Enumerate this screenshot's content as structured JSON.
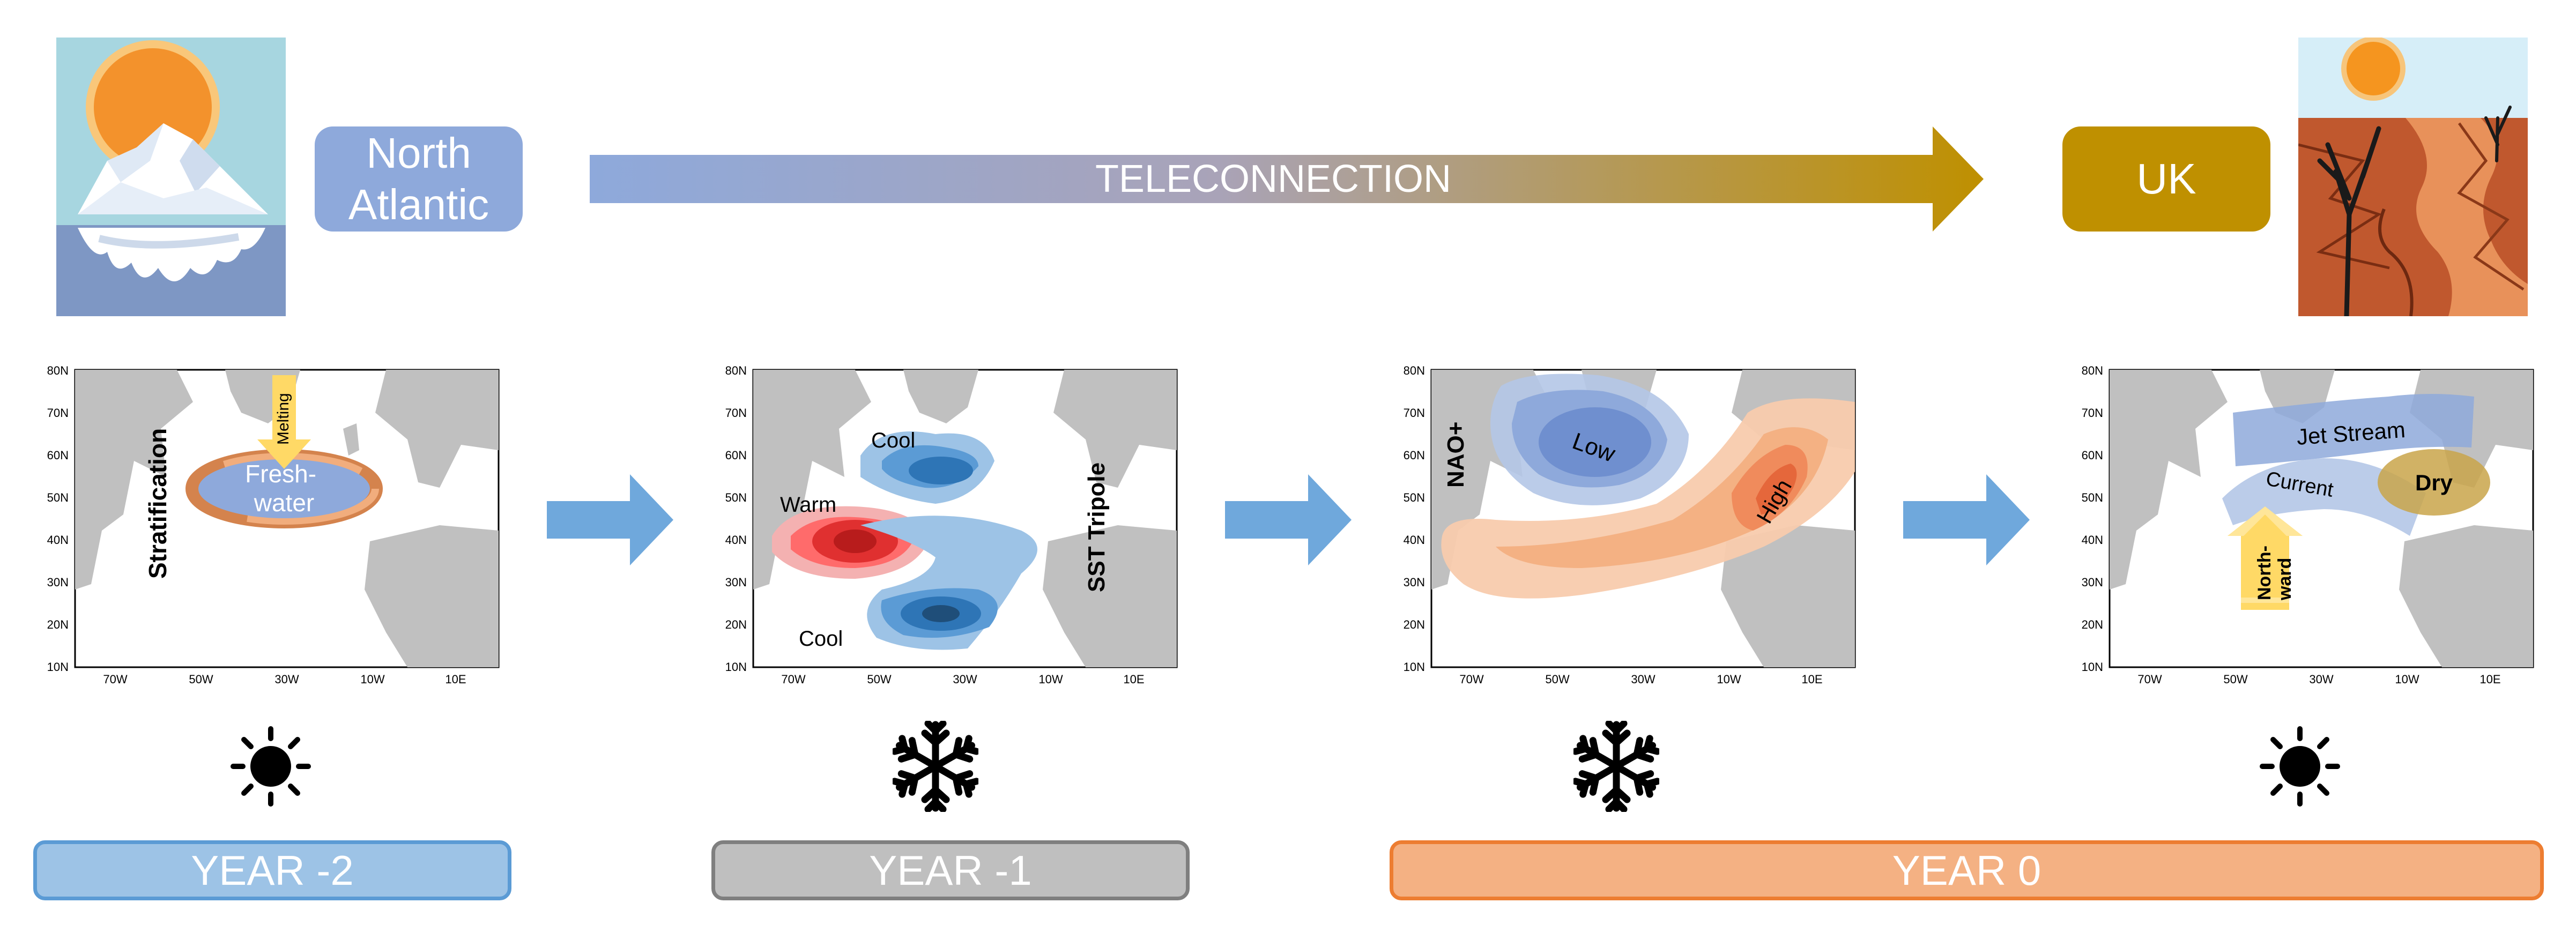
{
  "top": {
    "source_label": "North\nAtlantic",
    "arrow_label": "TELECONNECTION",
    "target_label": "UK",
    "source_color": "#8ea9db",
    "target_color": "#bf9000"
  },
  "maps": {
    "lat_ticks": [
      "80N",
      "70N",
      "60N",
      "50N",
      "40N",
      "30N",
      "20N",
      "10N"
    ],
    "lon_ticks": [
      "70W",
      "50W",
      "30W",
      "10W",
      "10E"
    ],
    "panel1": {
      "vertical_label": "Stratification",
      "arrow_label": "Melting",
      "center_label": "Fresh-\nwater"
    },
    "panel2": {
      "vertical_label": "SST Tripole",
      "label_cool_top": "Cool",
      "label_warm": "Warm",
      "label_cool_bottom": "Cool"
    },
    "panel3": {
      "vertical_label": "NAO+",
      "label_low": "Low",
      "label_high": "High"
    },
    "panel4": {
      "label_jet": "Jet Stream",
      "label_current": "Current",
      "label_dry": "Dry",
      "label_northward": "North-\nward"
    }
  },
  "years": [
    {
      "label": "YEAR -2",
      "icon": "sun-icon",
      "fill": "#9dc3e6",
      "border": "#5b9bd5"
    },
    {
      "label": "YEAR -1",
      "icon": "snowflake-icon",
      "fill": "#bfbfbf",
      "border": "#7f7f7f"
    },
    {
      "label": "YEAR 0",
      "icon": "snowflake-icon",
      "fill": "#f4b183",
      "border": "#ed7d31"
    }
  ],
  "panel4_icon": "sun-icon"
}
